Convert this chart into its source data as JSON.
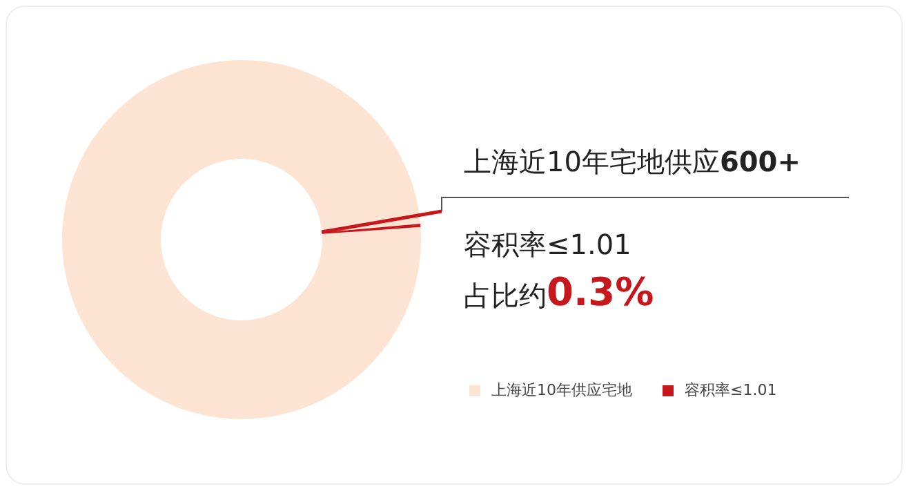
{
  "chart_data": {
    "type": "donut",
    "categories": [
      "上海近10年供应宅地",
      "容积率≤1.01"
    ],
    "values": [
      99.7,
      0.3
    ],
    "colors": [
      "#fde4d2",
      "#c8161d"
    ],
    "legend": "bottom right",
    "annotations": [
      "上海近10年宅地供应600+",
      "容积率≤1.01",
      "占比约0.3%"
    ]
  }
}
